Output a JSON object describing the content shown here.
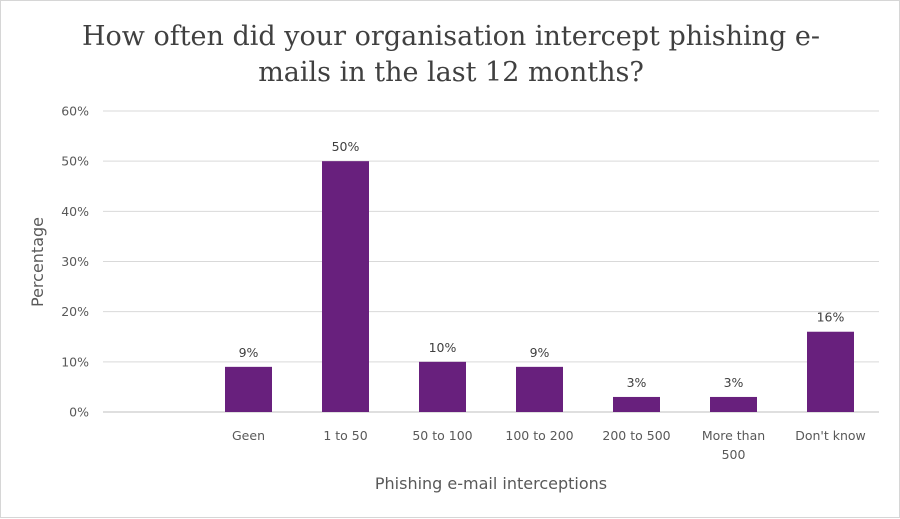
{
  "chart_data": {
    "type": "bar",
    "title_lines": [
      "How often did your organisation intercept phishing e-",
      "mails in the last 12 months?"
    ],
    "xlabel": "Phishing e-mail interceptions",
    "ylabel": "Percentage",
    "categories": [
      "",
      "Geen",
      "1 to 50",
      "50 to 100",
      "100 to 200",
      "200 to 500",
      "More than 500",
      "Don't know"
    ],
    "category_lines": [
      [],
      [
        "Geen"
      ],
      [
        "1 to 50"
      ],
      [
        "50 to 100"
      ],
      [
        "100 to 200"
      ],
      [
        "200 to 500"
      ],
      [
        "More than",
        "500"
      ],
      [
        "Don't know"
      ]
    ],
    "values": [
      null,
      9,
      50,
      10,
      9,
      3,
      3,
      16
    ],
    "data_labels": [
      "",
      "9%",
      "50%",
      "10%",
      "9%",
      "3%",
      "3%",
      "16%"
    ],
    "yticks": [
      0,
      10,
      20,
      30,
      40,
      50,
      60
    ],
    "ytick_labels": [
      "0%",
      "10%",
      "20%",
      "30%",
      "40%",
      "50%",
      "60%"
    ],
    "ylim": [
      0,
      60
    ],
    "grid": true,
    "legend": "none",
    "bar_color": "#68207d"
  }
}
